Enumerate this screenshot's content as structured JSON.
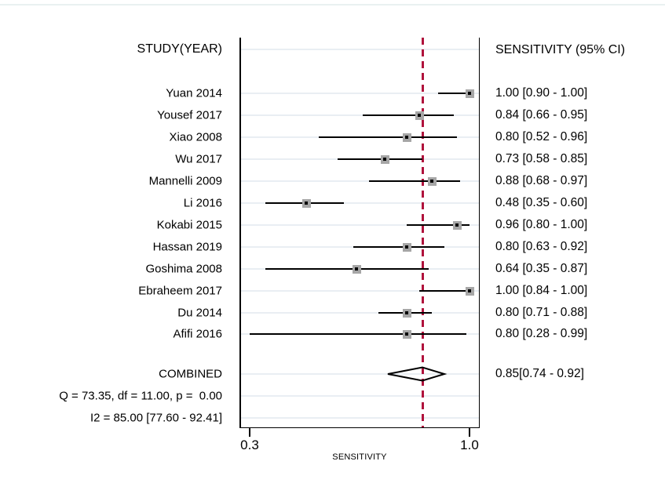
{
  "header": {
    "left": "STUDY(YEAR)",
    "right": "SENSITIVITY (95% CI)"
  },
  "chart_data": {
    "type": "forest",
    "xlabel": "SENSITIVITY",
    "xlim": [
      0.3,
      1.0
    ],
    "x_tick_labels": [
      "0.3",
      "1.0"
    ],
    "x_tick_values": [
      0.3,
      1.0
    ],
    "reference_line_x": 0.85,
    "grid": "horizontal-row-lines",
    "studies": [
      {
        "label": "Yuan 2014",
        "est": 1.0,
        "lo": 0.9,
        "hi": 1.0,
        "ci_text": "1.00 [0.90 - 1.00]"
      },
      {
        "label": "Yousef 2017",
        "est": 0.84,
        "lo": 0.66,
        "hi": 0.95,
        "ci_text": "0.84 [0.66 - 0.95]"
      },
      {
        "label": "Xiao 2008",
        "est": 0.8,
        "lo": 0.52,
        "hi": 0.96,
        "ci_text": "0.80 [0.52 - 0.96]"
      },
      {
        "label": "Wu 2017",
        "est": 0.73,
        "lo": 0.58,
        "hi": 0.85,
        "ci_text": "0.73 [0.58 - 0.85]"
      },
      {
        "label": "Mannelli 2009",
        "est": 0.88,
        "lo": 0.68,
        "hi": 0.97,
        "ci_text": "0.88 [0.68 - 0.97]"
      },
      {
        "label": "Li 2016",
        "est": 0.48,
        "lo": 0.35,
        "hi": 0.6,
        "ci_text": "0.48 [0.35 - 0.60]"
      },
      {
        "label": "Kokabi 2015",
        "est": 0.96,
        "lo": 0.8,
        "hi": 1.0,
        "ci_text": "0.96 [0.80 - 1.00]"
      },
      {
        "label": "Hassan 2019",
        "est": 0.8,
        "lo": 0.63,
        "hi": 0.92,
        "ci_text": "0.80 [0.63 - 0.92]"
      },
      {
        "label": "Goshima 2008",
        "est": 0.64,
        "lo": 0.35,
        "hi": 0.87,
        "ci_text": "0.64 [0.35 - 0.87]"
      },
      {
        "label": "Ebraheem 2017",
        "est": 1.0,
        "lo": 0.84,
        "hi": 1.0,
        "ci_text": "1.00 [0.84 - 1.00]"
      },
      {
        "label": "Du 2014",
        "est": 0.8,
        "lo": 0.71,
        "hi": 0.88,
        "ci_text": "0.80 [0.71 - 0.88]"
      },
      {
        "label": "Afifi 2016",
        "est": 0.8,
        "lo": 0.28,
        "hi": 0.99,
        "ci_text": "0.80 [0.28 - 0.99]"
      }
    ],
    "combined": {
      "label": "COMBINED",
      "est": 0.85,
      "lo": 0.74,
      "hi": 0.92,
      "ci_text": "0.85[0.74 - 0.92]"
    },
    "heterogeneity": [
      "Q = 73.35, df = 11.00, p =  0.00",
      "I2 = 85.00 [77.60 - 92.41]"
    ]
  },
  "colors": {
    "reference_line": "#b0123c",
    "marker_fill": "#a6a6a6",
    "marker_dot": "#000000",
    "gridline": "#e9eef3",
    "axis": "#000000",
    "background": "#ffffff"
  }
}
